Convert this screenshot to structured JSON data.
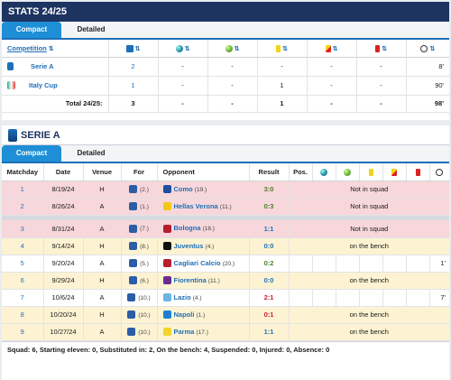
{
  "stats": {
    "title": "STATS 24/25",
    "tabs": [
      "Compact",
      "Detailed"
    ],
    "headers": {
      "competition": "Competition"
    },
    "rows": [
      {
        "competition": "Serie A",
        "apps": "2",
        "goals": "-",
        "assists": "-",
        "yellow": "-",
        "yellowred": "-",
        "red": "-",
        "minutes": "8'"
      },
      {
        "competition": "Italy Cup",
        "apps": "1",
        "goals": "-",
        "assists": "-",
        "yellow": "1",
        "yellowred": "-",
        "red": "-",
        "minutes": "90'"
      }
    ],
    "total": {
      "label": "Total 24/25:",
      "apps": "3",
      "goals": "-",
      "assists": "-",
      "yellow": "1",
      "yellowred": "-",
      "red": "-",
      "minutes": "98'"
    }
  },
  "serie_a": {
    "title": "SERIE A",
    "tabs": [
      "Compact",
      "Detailed"
    ],
    "headers": {
      "matchday": "Matchday",
      "date": "Date",
      "venue": "Venue",
      "for": "For",
      "opponent": "Opponent",
      "result": "Result",
      "pos": "Pos."
    },
    "rows": [
      {
        "matchday": "1",
        "date": "8/19/24",
        "venue": "H",
        "for_rank": "(2.)",
        "opponent": "Como",
        "opp_rank": "(19.)",
        "result": "3:0",
        "status": "Not in squad",
        "minutes": "",
        "style": "red",
        "res_class": "win"
      },
      {
        "matchday": "2",
        "date": "8/26/24",
        "venue": "A",
        "for_rank": "(1.)",
        "opponent": "Hellas Verona",
        "opp_rank": "(11.)",
        "result": "0:3",
        "status": "Not in squad",
        "minutes": "",
        "style": "red",
        "res_class": "draw"
      },
      {
        "matchday": "3",
        "date": "8/31/24",
        "venue": "A",
        "for_rank": "(7.)",
        "opponent": "Bologna",
        "opp_rank": "(18.)",
        "result": "1:1",
        "status": "Not in squad",
        "minutes": "",
        "style": "red",
        "res_class": "normal"
      },
      {
        "matchday": "4",
        "date": "9/14/24",
        "venue": "H",
        "for_rank": "(8.)",
        "opponent": "Juventus",
        "opp_rank": "(4.)",
        "result": "0:0",
        "status": "on the bench",
        "minutes": "",
        "style": "yellow",
        "res_class": "normal"
      },
      {
        "matchday": "5",
        "date": "9/20/24",
        "venue": "A",
        "for_rank": "(5.)",
        "opponent": "Cagliari Calcio",
        "opp_rank": "(20.)",
        "result": "0:2",
        "status": "",
        "minutes": "1'",
        "style": "white",
        "res_class": "draw"
      },
      {
        "matchday": "6",
        "date": "9/29/24",
        "venue": "H",
        "for_rank": "(6.)",
        "opponent": "Fiorentina",
        "opp_rank": "(11.)",
        "result": "0:0",
        "status": "on the bench",
        "minutes": "",
        "style": "yellow",
        "res_class": "normal"
      },
      {
        "matchday": "7",
        "date": "10/6/24",
        "venue": "A",
        "for_rank": "(10.)",
        "opponent": "Lazio",
        "opp_rank": "(4.)",
        "result": "2:1",
        "status": "",
        "minutes": "7'",
        "style": "white",
        "res_class": "loss"
      },
      {
        "matchday": "8",
        "date": "10/20/24",
        "venue": "H",
        "for_rank": "(10.)",
        "opponent": "Napoli",
        "opp_rank": "(1.)",
        "result": "0:1",
        "status": "on the bench",
        "minutes": "",
        "style": "yellow",
        "res_class": "loss"
      },
      {
        "matchday": "9",
        "date": "10/27/24",
        "venue": "A",
        "for_rank": "(10.)",
        "opponent": "Parma",
        "opp_rank": "(17.)",
        "result": "1:1",
        "status": "on the bench",
        "minutes": "",
        "style": "yellow",
        "res_class": "normal"
      }
    ],
    "footer": "Squad: 6, Starting eleven: 0, Substituted in: 2, On the bench: 4, Suspended: 0, Injured: 0, Absence: 0"
  }
}
